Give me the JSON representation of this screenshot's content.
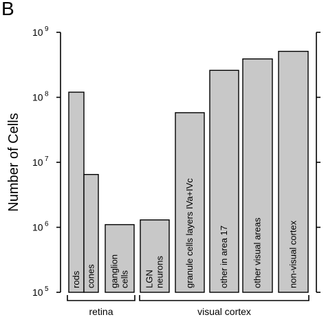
{
  "panel_label": "B",
  "chart_data": {
    "type": "bar",
    "yscale": "log",
    "ylabel": "Number of Cells",
    "ylim": [
      100000,
      1000000000
    ],
    "yticks": [
      {
        "value": 1000000000,
        "base": "10",
        "exp": "9"
      },
      {
        "value": 100000000,
        "base": "10",
        "exp": "8"
      },
      {
        "value": 10000000,
        "base": "10",
        "exp": "7"
      },
      {
        "value": 1000000,
        "base": "10",
        "exp": "6"
      },
      {
        "value": 100000,
        "base": "10",
        "exp": "5"
      }
    ],
    "categories": [
      [
        "rods"
      ],
      [
        "cones"
      ],
      [
        "ganglion",
        "cells"
      ],
      [
        "LGN",
        "neurons"
      ],
      [
        "granule cells layers IVa+IVc"
      ],
      [
        "other in area 17"
      ],
      [
        "other visual areas"
      ],
      [
        "non-visual cortex"
      ]
    ],
    "values": [
      120000000,
      6500000,
      1100000,
      1300000,
      58000000,
      260000000,
      390000000,
      510000000
    ],
    "groups": [
      {
        "label": "retina",
        "members": [
          0,
          1,
          2
        ]
      },
      {
        "label": "visual cortex",
        "members": [
          3,
          4,
          5,
          6,
          7
        ]
      }
    ],
    "grid": false,
    "bar_color": "#c8c8c8"
  }
}
